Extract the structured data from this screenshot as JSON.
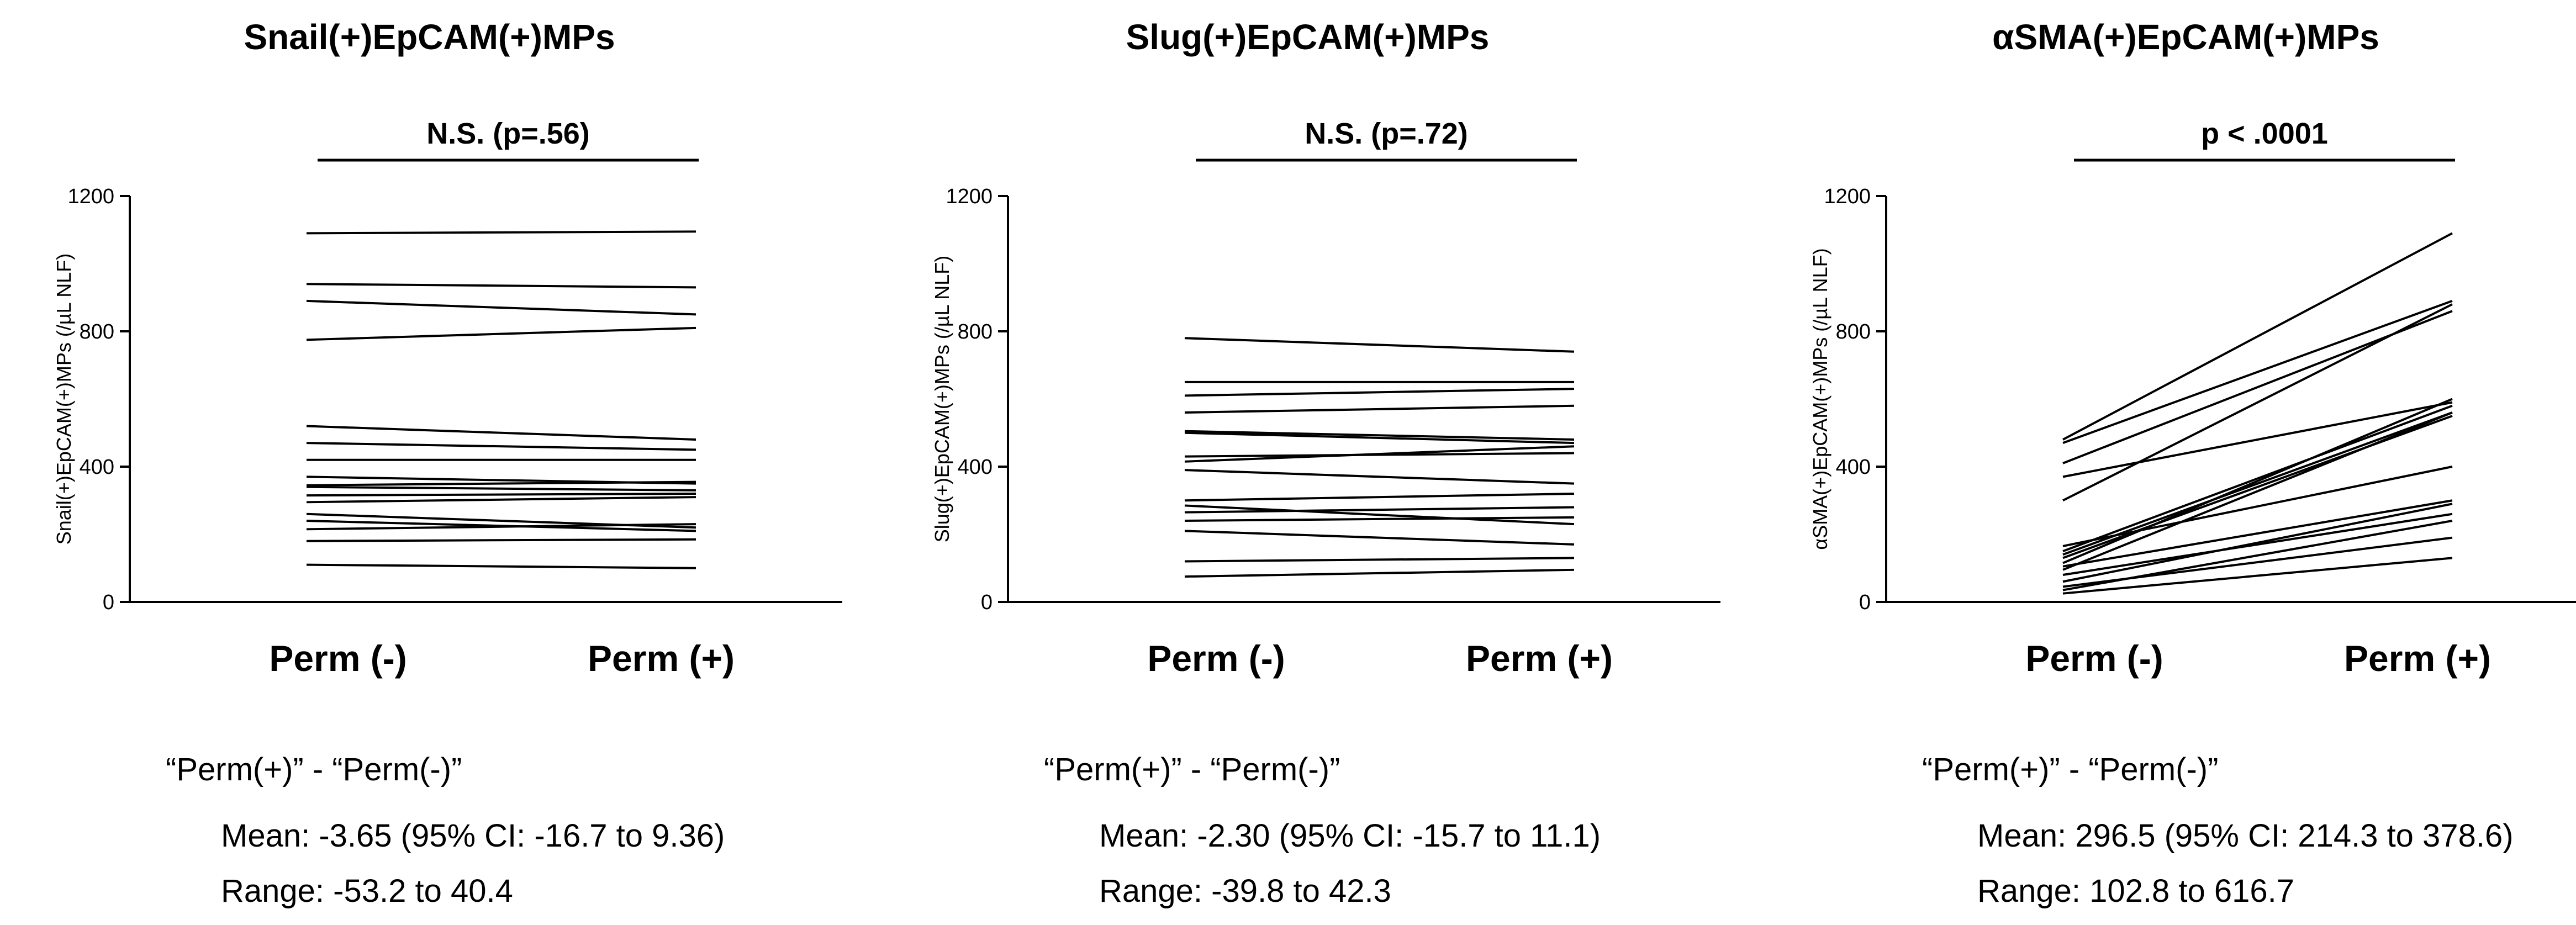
{
  "chart_data": [
    {
      "type": "line",
      "title": "Snail(+)EpCAM(+)MPs",
      "ylabel": "Snail(+)EpCAM(+)MPs (/µL NLF)",
      "categories": [
        "Perm (-)",
        "Perm (+)"
      ],
      "ylim": [
        0,
        1200
      ],
      "yticks": [
        0,
        400,
        800,
        1200
      ],
      "significance": "N.S. (p=.56)",
      "pairs": [
        [
          1090,
          1095
        ],
        [
          940,
          930
        ],
        [
          890,
          850
        ],
        [
          775,
          810
        ],
        [
          520,
          480
        ],
        [
          470,
          450
        ],
        [
          420,
          420
        ],
        [
          370,
          350
        ],
        [
          345,
          355
        ],
        [
          340,
          330
        ],
        [
          315,
          320
        ],
        [
          295,
          310
        ],
        [
          260,
          220
        ],
        [
          240,
          210
        ],
        [
          215,
          230
        ],
        [
          180,
          185
        ],
        [
          110,
          100
        ]
      ],
      "summary": {
        "heading": "“Perm(+)” - “Perm(-)”",
        "mean": "Mean: -3.65 (95% CI: -16.7 to 9.36)",
        "range": "Range: -53.2 to 40.4"
      }
    },
    {
      "type": "line",
      "title": "Slug(+)EpCAM(+)MPs",
      "ylabel": "Slug(+)EpCAM(+)MPs (/µL NLF)",
      "categories": [
        "Perm (-)",
        "Perm (+)"
      ],
      "ylim": [
        0,
        1200
      ],
      "yticks": [
        0,
        400,
        800,
        1200
      ],
      "significance": "N.S. (p=.72)",
      "pairs": [
        [
          780,
          740
        ],
        [
          650,
          650
        ],
        [
          610,
          630
        ],
        [
          560,
          580
        ],
        [
          505,
          480
        ],
        [
          500,
          470
        ],
        [
          430,
          440
        ],
        [
          415,
          460
        ],
        [
          390,
          350
        ],
        [
          300,
          320
        ],
        [
          285,
          230
        ],
        [
          265,
          280
        ],
        [
          240,
          250
        ],
        [
          210,
          170
        ],
        [
          120,
          130
        ],
        [
          75,
          95
        ]
      ],
      "summary": {
        "heading": "“Perm(+)” - “Perm(-)”",
        "mean": "Mean: -2.30 (95% CI: -15.7 to 11.1)",
        "range": "Range: -39.8 to 42.3"
      }
    },
    {
      "type": "line",
      "title": "αSMA(+)EpCAM(+)MPs",
      "ylabel": "αSMA(+)EpCAM(+)MPs (/µL NLF)",
      "categories": [
        "Perm (-)",
        "Perm (+)"
      ],
      "ylim": [
        0,
        1200
      ],
      "yticks": [
        0,
        400,
        800,
        1200
      ],
      "significance": "p < .0001",
      "pairs": [
        [
          480,
          1090
        ],
        [
          470,
          890
        ],
        [
          410,
          860
        ],
        [
          370,
          590
        ],
        [
          300,
          880
        ],
        [
          165,
          400
        ],
        [
          150,
          580
        ],
        [
          140,
          560
        ],
        [
          130,
          550
        ],
        [
          115,
          600
        ],
        [
          105,
          300
        ],
        [
          95,
          560
        ],
        [
          80,
          260
        ],
        [
          60,
          290
        ],
        [
          45,
          190
        ],
        [
          25,
          130
        ],
        [
          35,
          240
        ]
      ],
      "summary": {
        "heading": "“Perm(+)” - “Perm(-)”",
        "mean": "Mean: 296.5 (95% CI: 214.3 to 378.6)",
        "range": "Range: 102.8 to 616.7"
      }
    }
  ]
}
